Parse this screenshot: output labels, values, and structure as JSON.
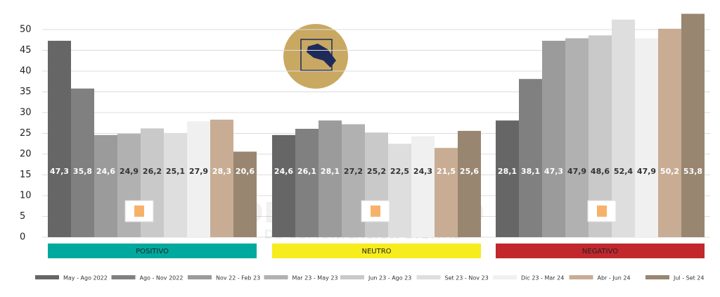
{
  "chart_data": {
    "type": "bar",
    "categories": [
      "POSITIVO",
      "NEUTRO",
      "NEGATIVO"
    ],
    "category_colors": [
      "#00a99d",
      "#f7ec1e",
      "#c1272d"
    ],
    "ylim": [
      0,
      55
    ],
    "yticks": [
      0,
      5,
      10,
      15,
      20,
      25,
      30,
      35,
      40,
      45,
      50
    ],
    "grid": true,
    "legend": "bottom",
    "watermark": [
      "OBSERVATORIO",
      "DE COMUNICACIÓN DIGITAL"
    ],
    "series": [
      {
        "name": "May - Ago 2022",
        "color": "#666666",
        "values": [
          47.3,
          24.6,
          28.1
        ],
        "value_labels": [
          "47,3",
          "24,6",
          "28,1"
        ]
      },
      {
        "name": "Ago - Nov 2022",
        "color": "#808080",
        "values": [
          35.8,
          26.1,
          38.1
        ],
        "value_labels": [
          "35,8",
          "26,1",
          "38,1"
        ]
      },
      {
        "name": "Nov 22 - Feb 23",
        "color": "#9b9b9b",
        "values": [
          24.6,
          28.1,
          47.3
        ],
        "value_labels": [
          "24,6",
          "28,1",
          "47,3"
        ]
      },
      {
        "name": "Mar 23 - May 23",
        "color": "#b1b1b1",
        "values": [
          24.9,
          27.2,
          47.9
        ],
        "value_labels": [
          "24,9",
          "27,2",
          "47,9"
        ]
      },
      {
        "name": "Jun 23 - Ago 23",
        "color": "#c9c9c9",
        "values": [
          26.2,
          25.2,
          48.6
        ],
        "value_labels": [
          "26,2",
          "25,2",
          "48,6"
        ]
      },
      {
        "name": "Set 23 - Nov 23",
        "color": "#dedede",
        "values": [
          25.1,
          22.5,
          52.4
        ],
        "value_labels": [
          "25,1",
          "22,5",
          "52,4"
        ]
      },
      {
        "name": "Dic 23 - Mar 24",
        "color": "#f0f0f0",
        "values": [
          27.9,
          24.3,
          47.9
        ],
        "value_labels": [
          "27,9",
          "24,3",
          "47,9"
        ]
      },
      {
        "name": "Abr - Jun 24",
        "color": "#c8ad94",
        "values": [
          28.3,
          21.5,
          50.2
        ],
        "value_labels": [
          "28,3",
          "21,5",
          "50,2"
        ]
      },
      {
        "name": "Jul - Set 24",
        "color": "#988670",
        "values": [
          20.6,
          25.6,
          53.8
        ],
        "value_labels": [
          "20,6",
          "25,6",
          "53,8"
        ]
      }
    ]
  }
}
